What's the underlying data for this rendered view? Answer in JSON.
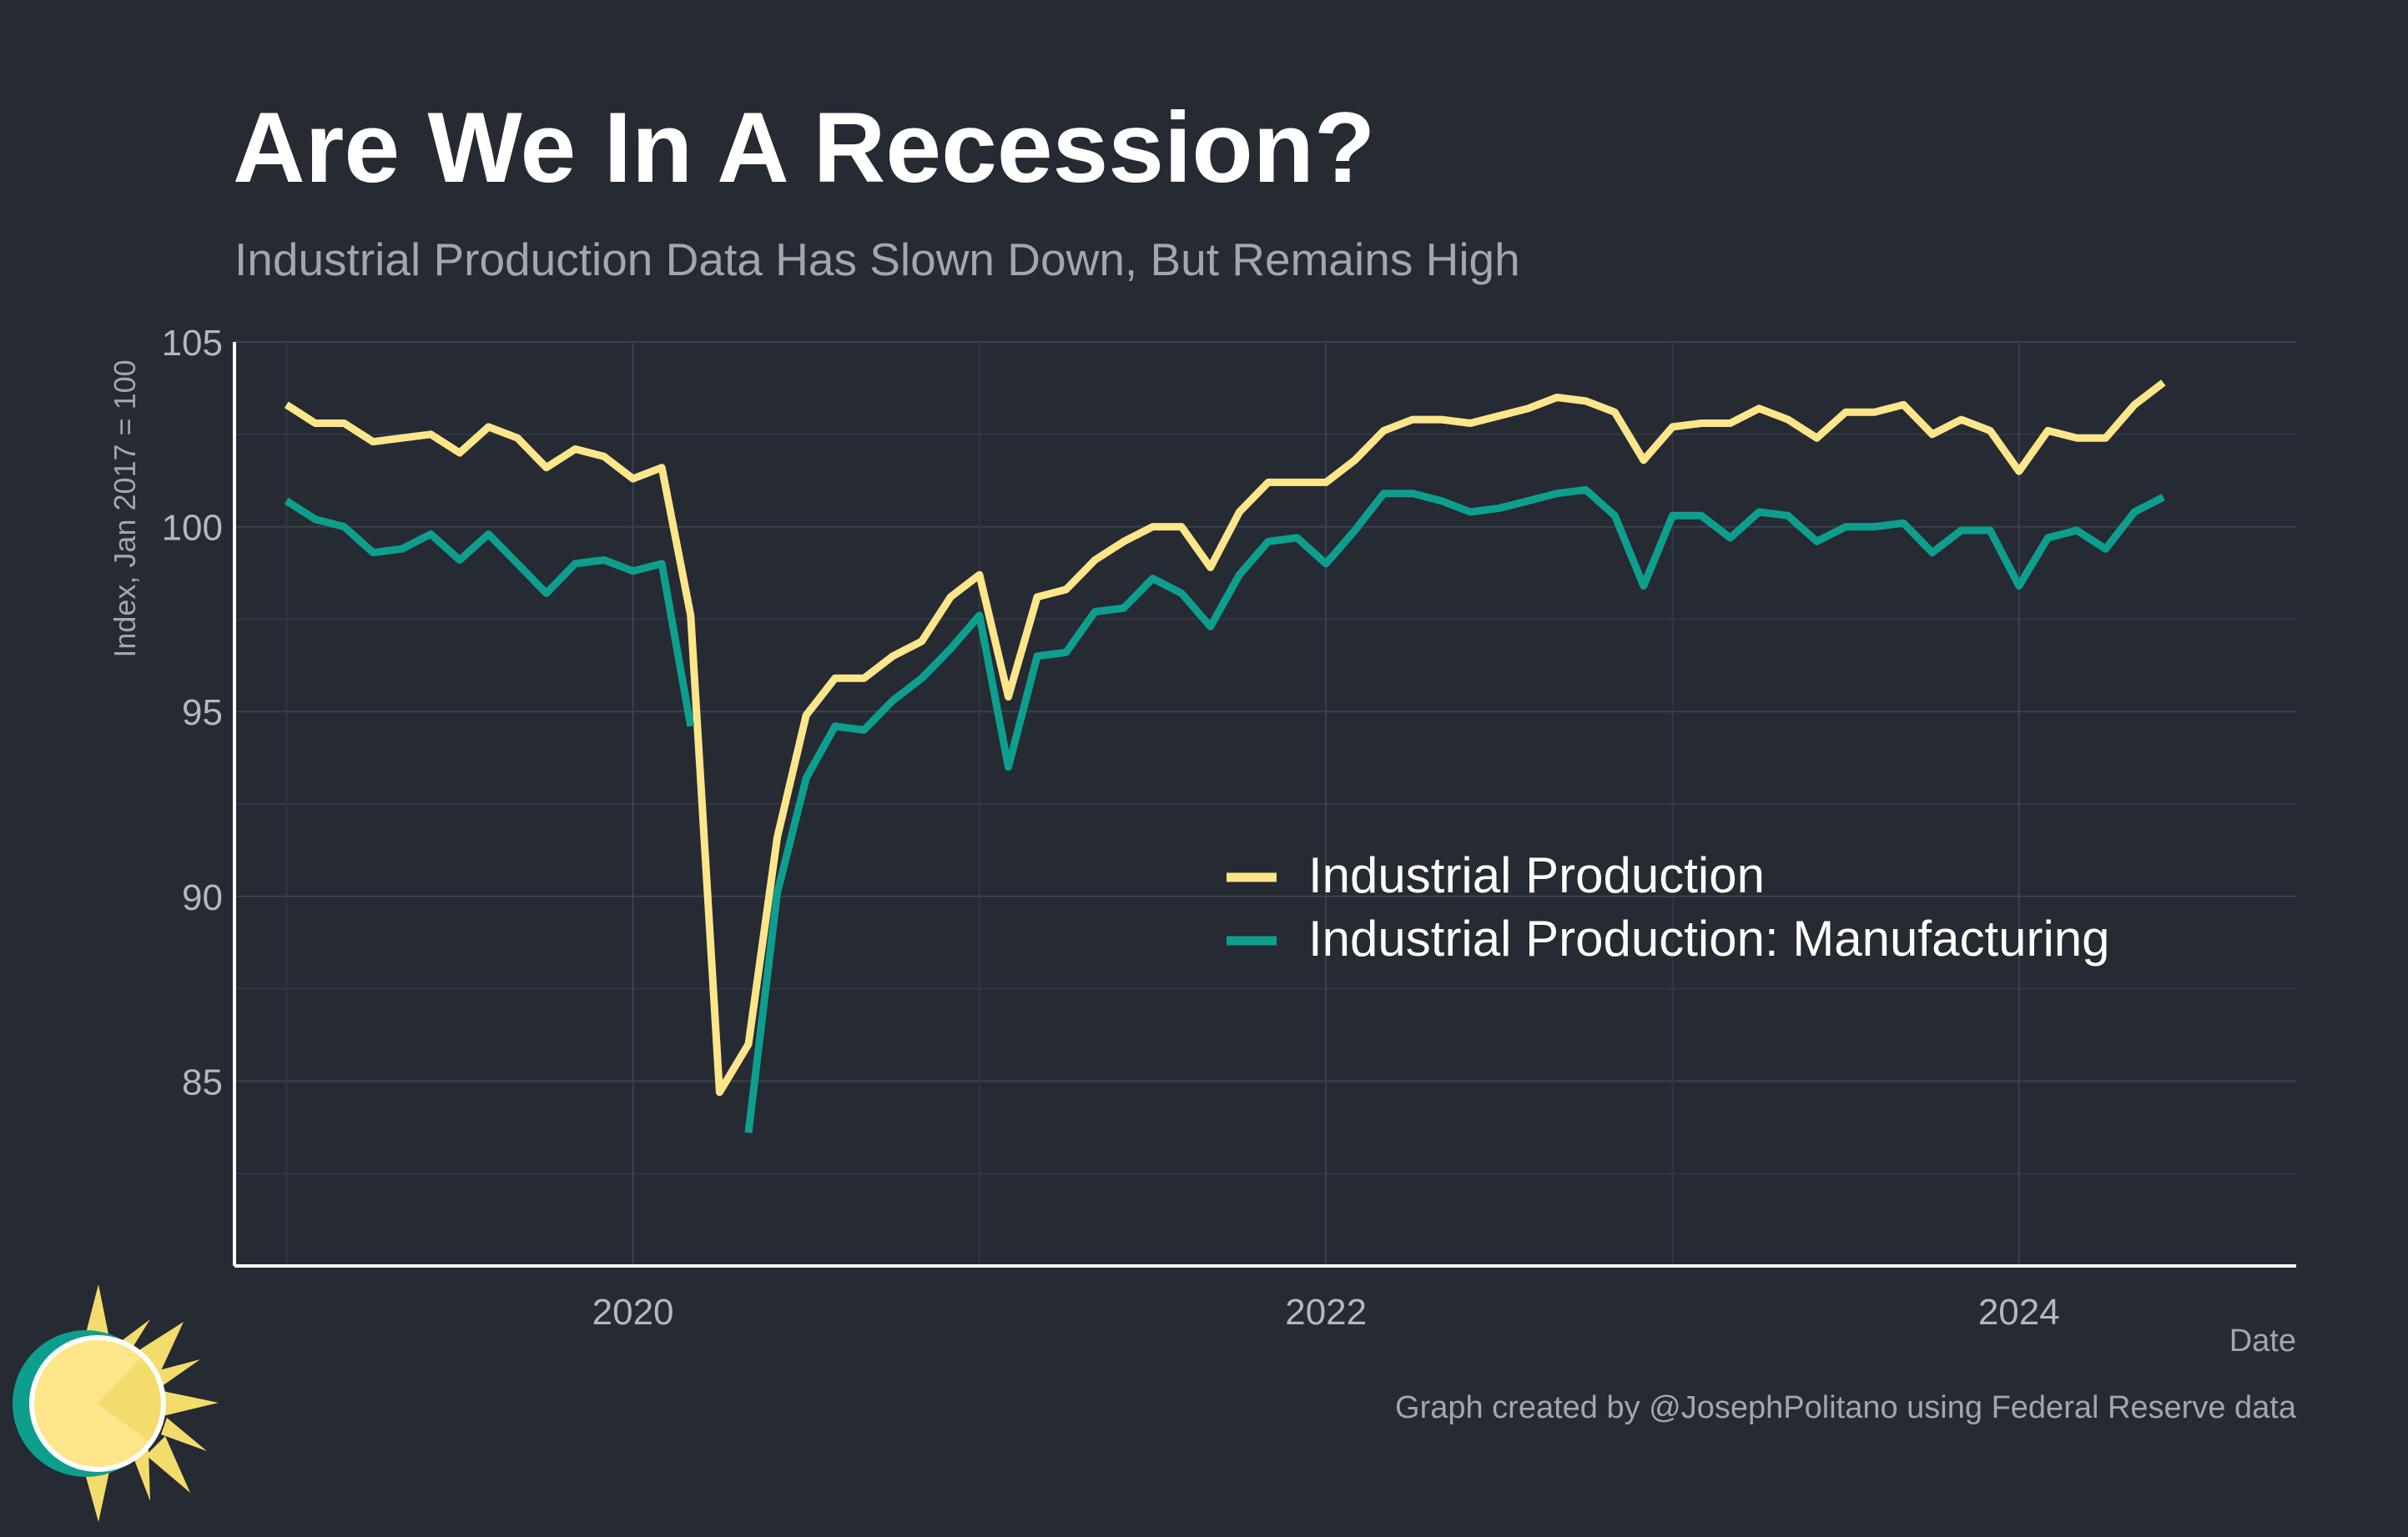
{
  "chart_data": {
    "type": "line",
    "title": "Are We In A Recession?",
    "subtitle": "Industrial Production Data Has Slown Down, But Remains High",
    "xlabel": "Date",
    "ylabel": "Index, Jan 2017 = 100",
    "caption": "Graph created by @JosephPolitano using Federal Reserve data",
    "x_start": "2019-01",
    "x_end": "2024-06",
    "x_ticks": [
      "2020",
      "2022",
      "2024"
    ],
    "y_ticks": [
      "85",
      "90",
      "95",
      "100",
      "105"
    ],
    "ylim": [
      80,
      105
    ],
    "grid": true,
    "legend_position": "center-right",
    "series": [
      {
        "name": "Industrial Production",
        "color": "#fde68a",
        "values": [
          103.3,
          102.8,
          102.8,
          102.3,
          102.4,
          102.5,
          102.0,
          102.7,
          102.4,
          101.6,
          102.1,
          101.9,
          101.3,
          101.6,
          97.6,
          84.7,
          86.0,
          91.6,
          94.9,
          95.9,
          95.9,
          96.5,
          96.9,
          98.1,
          98.7,
          95.4,
          98.1,
          98.3,
          99.1,
          99.6,
          100.0,
          100.0,
          98.9,
          100.4,
          101.2,
          101.2,
          101.2,
          101.8,
          102.6,
          102.9,
          102.9,
          102.8,
          103.0,
          103.2,
          103.5,
          103.4,
          103.1,
          101.8,
          102.7,
          102.8,
          102.8,
          103.2,
          102.9,
          102.4,
          103.1,
          103.1,
          103.3,
          102.5,
          102.9,
          102.6,
          101.5,
          102.6,
          102.4,
          102.4,
          103.3,
          103.9
        ]
      },
      {
        "name": "Industrial Production: Manufacturing",
        "color": "#0e9e8e",
        "values": [
          100.7,
          100.2,
          100.0,
          99.3,
          99.4,
          99.8,
          99.1,
          99.8,
          99.0,
          98.2,
          99.0,
          99.1,
          98.8,
          99.0,
          94.6,
          null,
          83.6,
          90.1,
          93.2,
          94.6,
          94.5,
          95.3,
          95.9,
          96.7,
          97.6,
          93.5,
          96.5,
          96.6,
          97.7,
          97.8,
          98.6,
          98.2,
          97.3,
          98.7,
          99.6,
          99.7,
          99.0,
          99.9,
          100.9,
          100.9,
          100.7,
          100.4,
          100.5,
          100.7,
          100.9,
          101.0,
          100.3,
          98.4,
          100.3,
          100.3,
          99.7,
          100.4,
          100.3,
          99.6,
          100.0,
          100.0,
          100.1,
          99.3,
          99.9,
          99.9,
          98.4,
          99.7,
          99.9,
          99.4,
          100.4,
          100.8
        ]
      }
    ]
  }
}
